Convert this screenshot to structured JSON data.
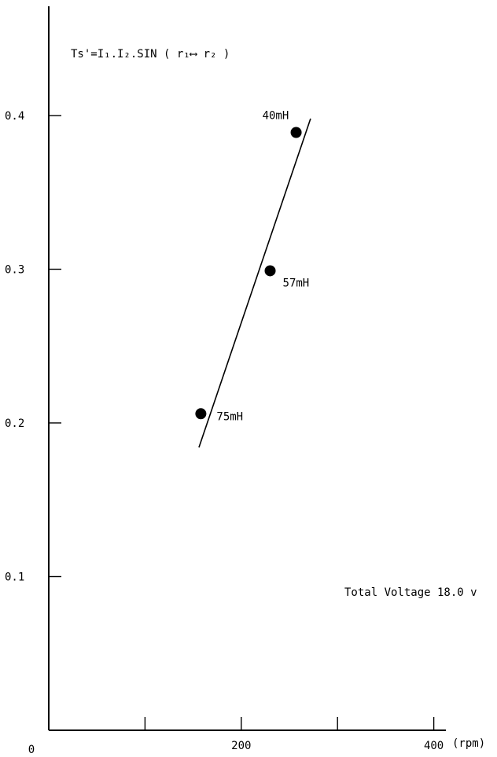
{
  "chart_data": {
    "type": "scatter",
    "title": "Ts'=I₁.I₂.SIN ( r₁⟷ r₂ )",
    "annotation": "Total Voltage  18.0 v",
    "xlabel_unit": "(rpm)",
    "origin_label": "0",
    "xlim": [
      0,
      420
    ],
    "ylim": [
      0,
      0.46
    ],
    "x_ticks": [
      100,
      200,
      300,
      400
    ],
    "x_tick_labels": [
      {
        "value": 200,
        "label": "200"
      },
      {
        "value": 400,
        "label": "400"
      }
    ],
    "y_ticks": [
      0.1,
      0.2,
      0.3,
      0.4
    ],
    "y_tick_labels": [
      {
        "value": 0.1,
        "label": "0.1"
      },
      {
        "value": 0.2,
        "label": "0.2"
      },
      {
        "value": 0.3,
        "label": "0.3"
      },
      {
        "value": 0.4,
        "label": "0.4"
      }
    ],
    "points": [
      {
        "x": 158,
        "y": 0.206,
        "label": "75mH"
      },
      {
        "x": 230,
        "y": 0.299,
        "label": "57mH"
      },
      {
        "x": 257,
        "y": 0.389,
        "label": "40mH"
      }
    ],
    "trend_line": {
      "x": [
        156,
        272
      ],
      "y": [
        0.184,
        0.398
      ]
    },
    "grid": false,
    "colors": {
      "axis": "#000000",
      "marker": "#000000",
      "line": "#000000"
    }
  }
}
